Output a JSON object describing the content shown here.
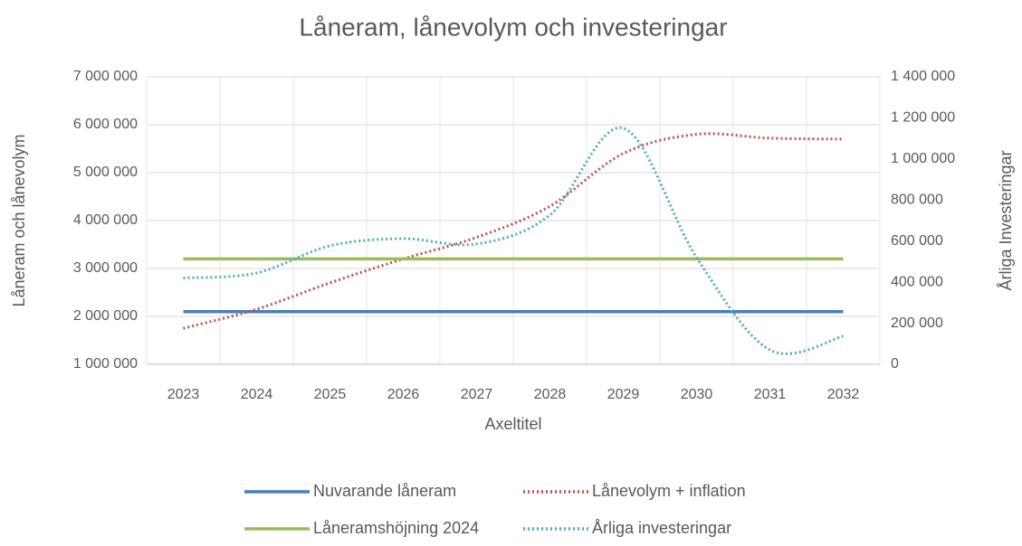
{
  "chart_data": {
    "type": "line",
    "title": "Låneram, lånevolym och investeringar",
    "x_label": "Axeltitel",
    "y_label": "Låneram och lånevolym",
    "y2_label": "Årliga Investeringar",
    "categories": [
      "2023",
      "2024",
      "2025",
      "2026",
      "2027",
      "2028",
      "2029",
      "2030",
      "2031",
      "2032"
    ],
    "ylim": [
      1000000,
      7000000
    ],
    "yticks": [
      {
        "value": 1000000,
        "label": "1 000 000"
      },
      {
        "value": 2000000,
        "label": "2 000 000"
      },
      {
        "value": 3000000,
        "label": "3 000 000"
      },
      {
        "value": 4000000,
        "label": "4 000 000"
      },
      {
        "value": 5000000,
        "label": "5 000 000"
      },
      {
        "value": 6000000,
        "label": "6 000 000"
      },
      {
        "value": 7000000,
        "label": "7 000 000"
      }
    ],
    "y2lim": [
      0,
      1400000
    ],
    "y2ticks": [
      0,
      {
        "value": 200000,
        "label": "200 000"
      },
      {
        "value": 400000,
        "label": "400 000"
      },
      {
        "value": 600000,
        "label": "600 000"
      },
      {
        "value": 800000,
        "label": "800 000"
      },
      {
        "value": 1000000,
        "label": "1 000 000"
      },
      {
        "value": 1200000,
        "label": "1 200 000"
      },
      {
        "value": 1400000,
        "label": "1 400 000"
      }
    ],
    "grid": true,
    "legend": "bottom",
    "series": [
      {
        "name": "Nuvarande låneram",
        "color": "#4a7ebb",
        "dash": false,
        "values": [
          2100000,
          2100000,
          2100000,
          2100000,
          2100000,
          2100000,
          2100000,
          2100000,
          2100000,
          2100000
        ]
      },
      {
        "name": "Lånevolym + inflation",
        "color": "#c0504d",
        "dash": true,
        "values": [
          1750000,
          2150000,
          2700000,
          3200000,
          3650000,
          4300000,
          5400000,
          5800000,
          5720000,
          5700000
        ]
      },
      {
        "name": "Låneramshöjning 2024",
        "color": "#9bbb59",
        "dash": false,
        "values": [
          3200000,
          3200000,
          3200000,
          3200000,
          3200000,
          3200000,
          3200000,
          3200000,
          3200000,
          3200000
        ]
      },
      {
        "name": "Årliga investeringar",
        "color": "#4bacc6",
        "dash": true,
        "axis": "y2",
        "values": [
          420000,
          445000,
          577000,
          612000,
          586000,
          727000,
          1150000,
          520000,
          70000,
          137000
        ]
      }
    ]
  }
}
